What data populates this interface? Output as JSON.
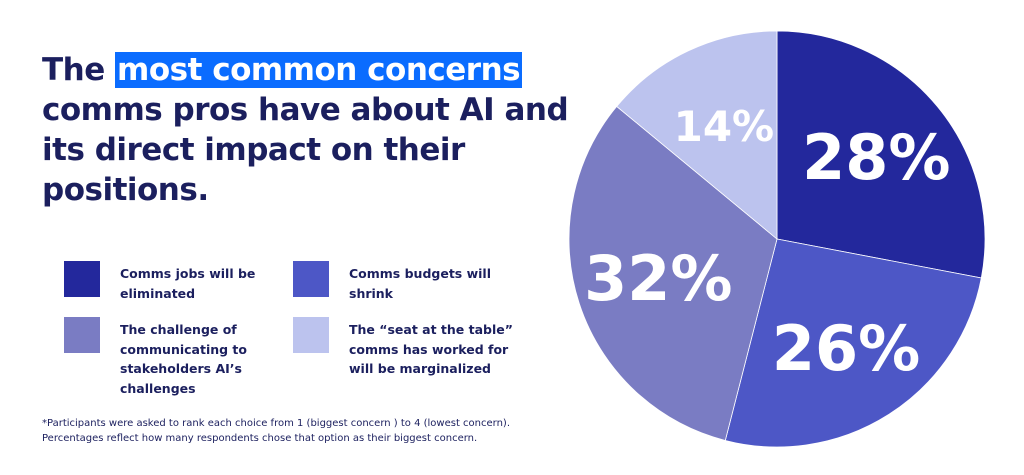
{
  "title": {
    "prefix": "The ",
    "highlight": "most common concerns",
    "rest": " comms pros have about AI and its direct impact on their positions.",
    "highlight_color": "#0a6cff"
  },
  "legend": [
    {
      "label": "Comms jobs will be eliminated",
      "color": "#23289c"
    },
    {
      "label": "Comms budgets will shrink",
      "color": "#4d57c6"
    },
    {
      "label": "The challenge of communicating to stakeholders AI’s challenges",
      "color": "#7a7cc3"
    },
    {
      "label": "The “seat at the table” comms has worked for will be marginalized",
      "color": "#bcc3ee"
    }
  ],
  "footnote": {
    "line1": "*Participants were asked to rank each choice from 1 (biggest concern ) to 4 (lowest concern).",
    "line2": "Percentages reflect how many respondents chose that option as their biggest concern."
  },
  "chart_data": {
    "type": "pie",
    "title": "The most common concerns comms pros have about AI and its direct impact on their positions.",
    "categories": [
      "Comms jobs will be eliminated",
      "Comms budgets will shrink",
      "The challenge of communicating to stakeholders AI’s challenges",
      "The “seat at the table” comms has worked for will be marginalized"
    ],
    "values": [
      28,
      26,
      32,
      14
    ],
    "labels": [
      "28%",
      "26%",
      "32%",
      "14%"
    ],
    "colors": [
      "#23289c",
      "#4d57c6",
      "#7a7cc3",
      "#bcc3ee"
    ],
    "start_angle": "top, clockwise",
    "legend_position": "left"
  }
}
